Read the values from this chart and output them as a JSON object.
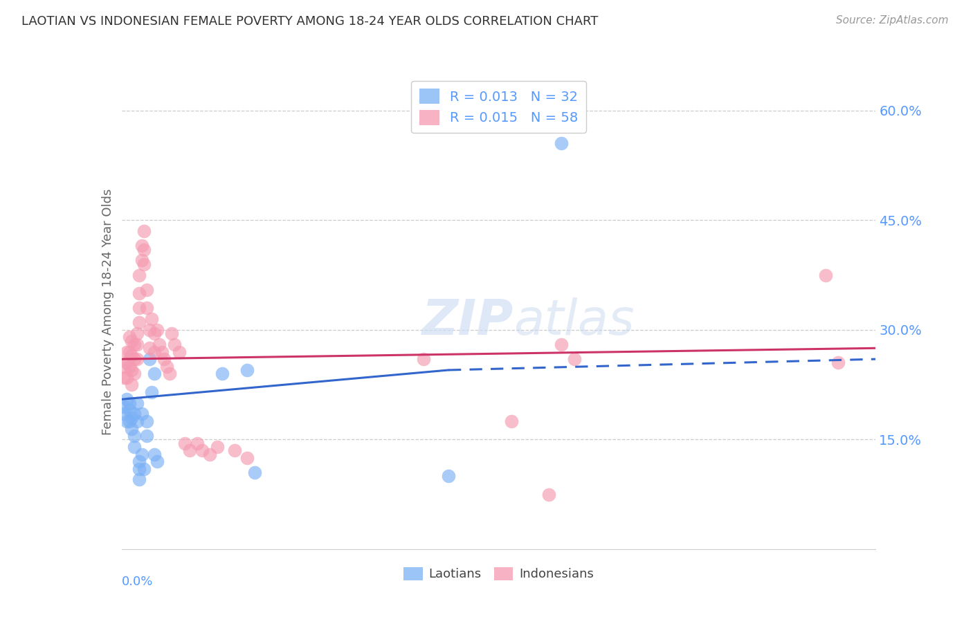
{
  "title": "LAOTIAN VS INDONESIAN FEMALE POVERTY AMONG 18-24 YEAR OLDS CORRELATION CHART",
  "source": "Source: ZipAtlas.com",
  "ylabel": "Female Poverty Among 18-24 Year Olds",
  "xlim": [
    0.0,
    0.3
  ],
  "ylim": [
    0.0,
    0.65
  ],
  "background_color": "#ffffff",
  "grid_color": "#cccccc",
  "blue_color": "#7ab0f5",
  "pink_color": "#f59ab0",
  "trendline_blue": "#3366cc",
  "trendline_pink": "#cc3366",
  "legend_R1": "0.013",
  "legend_N1": "32",
  "legend_R2": "0.015",
  "legend_N2": "58",
  "laotian_x": [
    0.001,
    0.001,
    0.002,
    0.002,
    0.003,
    0.003,
    0.003,
    0.004,
    0.004,
    0.005,
    0.005,
    0.005,
    0.006,
    0.006,
    0.007,
    0.007,
    0.007,
    0.008,
    0.008,
    0.009,
    0.01,
    0.01,
    0.011,
    0.012,
    0.013,
    0.013,
    0.014,
    0.04,
    0.05,
    0.053,
    0.13,
    0.175
  ],
  "laotian_y": [
    0.195,
    0.185,
    0.205,
    0.175,
    0.2,
    0.19,
    0.175,
    0.18,
    0.165,
    0.185,
    0.155,
    0.14,
    0.2,
    0.175,
    0.12,
    0.11,
    0.095,
    0.185,
    0.13,
    0.11,
    0.175,
    0.155,
    0.26,
    0.215,
    0.24,
    0.13,
    0.12,
    0.24,
    0.245,
    0.105,
    0.1,
    0.555
  ],
  "indonesian_x": [
    0.001,
    0.001,
    0.002,
    0.002,
    0.002,
    0.003,
    0.003,
    0.003,
    0.004,
    0.004,
    0.004,
    0.004,
    0.005,
    0.005,
    0.005,
    0.006,
    0.006,
    0.006,
    0.007,
    0.007,
    0.007,
    0.007,
    0.008,
    0.008,
    0.009,
    0.009,
    0.009,
    0.01,
    0.01,
    0.011,
    0.011,
    0.012,
    0.013,
    0.013,
    0.014,
    0.015,
    0.016,
    0.017,
    0.018,
    0.019,
    0.02,
    0.021,
    0.023,
    0.025,
    0.027,
    0.03,
    0.032,
    0.035,
    0.038,
    0.045,
    0.05,
    0.12,
    0.155,
    0.17,
    0.175,
    0.18,
    0.28,
    0.285
  ],
  "indonesian_y": [
    0.25,
    0.235,
    0.27,
    0.255,
    0.235,
    0.29,
    0.27,
    0.25,
    0.285,
    0.265,
    0.245,
    0.225,
    0.28,
    0.26,
    0.24,
    0.295,
    0.28,
    0.26,
    0.375,
    0.35,
    0.33,
    0.31,
    0.415,
    0.395,
    0.435,
    0.41,
    0.39,
    0.355,
    0.33,
    0.3,
    0.275,
    0.315,
    0.295,
    0.27,
    0.3,
    0.28,
    0.27,
    0.26,
    0.25,
    0.24,
    0.295,
    0.28,
    0.27,
    0.145,
    0.135,
    0.145,
    0.135,
    0.13,
    0.14,
    0.135,
    0.125,
    0.26,
    0.175,
    0.075,
    0.28,
    0.26,
    0.375,
    0.255
  ],
  "blue_trendline_start_x": 0.0,
  "blue_trendline_solid_end_x": 0.13,
  "blue_trendline_y_at_0": 0.205,
  "blue_trendline_y_at_end": 0.245,
  "blue_trendline_y_at_30": 0.26,
  "pink_trendline_y_at_0": 0.26,
  "pink_trendline_y_at_30": 0.275
}
